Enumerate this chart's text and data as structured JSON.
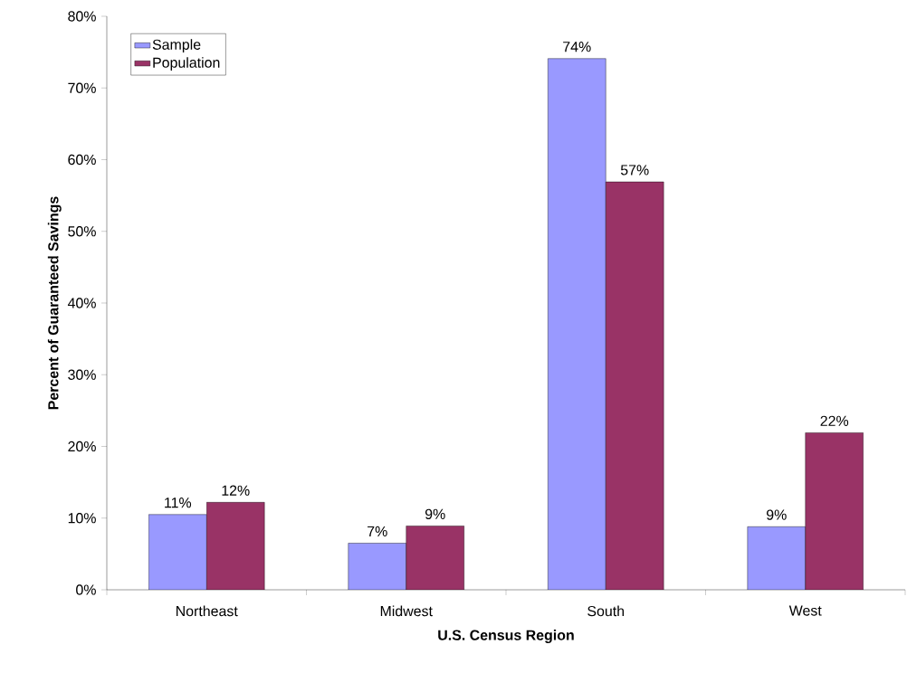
{
  "chart_data": {
    "type": "bar",
    "xlabel": "U.S. Census Region",
    "ylabel": "Percent of Guaranteed Savings",
    "categories": [
      "Northeast",
      "Midwest",
      "South",
      "West"
    ],
    "series": [
      {
        "name": "Sample",
        "color": "#9999ff",
        "values": [
          10.5,
          6.5,
          74.1,
          8.8
        ],
        "value_labels": [
          "11%",
          "7%",
          "74%",
          "9%"
        ]
      },
      {
        "name": "Population",
        "color": "#993366",
        "values": [
          12.2,
          8.9,
          56.9,
          21.9
        ],
        "value_labels": [
          "12%",
          "9%",
          "57%",
          "22%"
        ]
      }
    ],
    "ylim": [
      0,
      80
    ],
    "yticks": [
      {
        "value": 0,
        "label": "0%"
      },
      {
        "value": 10,
        "label": "10%"
      },
      {
        "value": 20,
        "label": "20%"
      },
      {
        "value": 30,
        "label": "30%"
      },
      {
        "value": 40,
        "label": "40%"
      },
      {
        "value": 50,
        "label": "50%"
      },
      {
        "value": 60,
        "label": "60%"
      },
      {
        "value": 70,
        "label": "70%"
      },
      {
        "value": 80,
        "label": "80%"
      }
    ],
    "grid": false,
    "legend": "top left"
  }
}
